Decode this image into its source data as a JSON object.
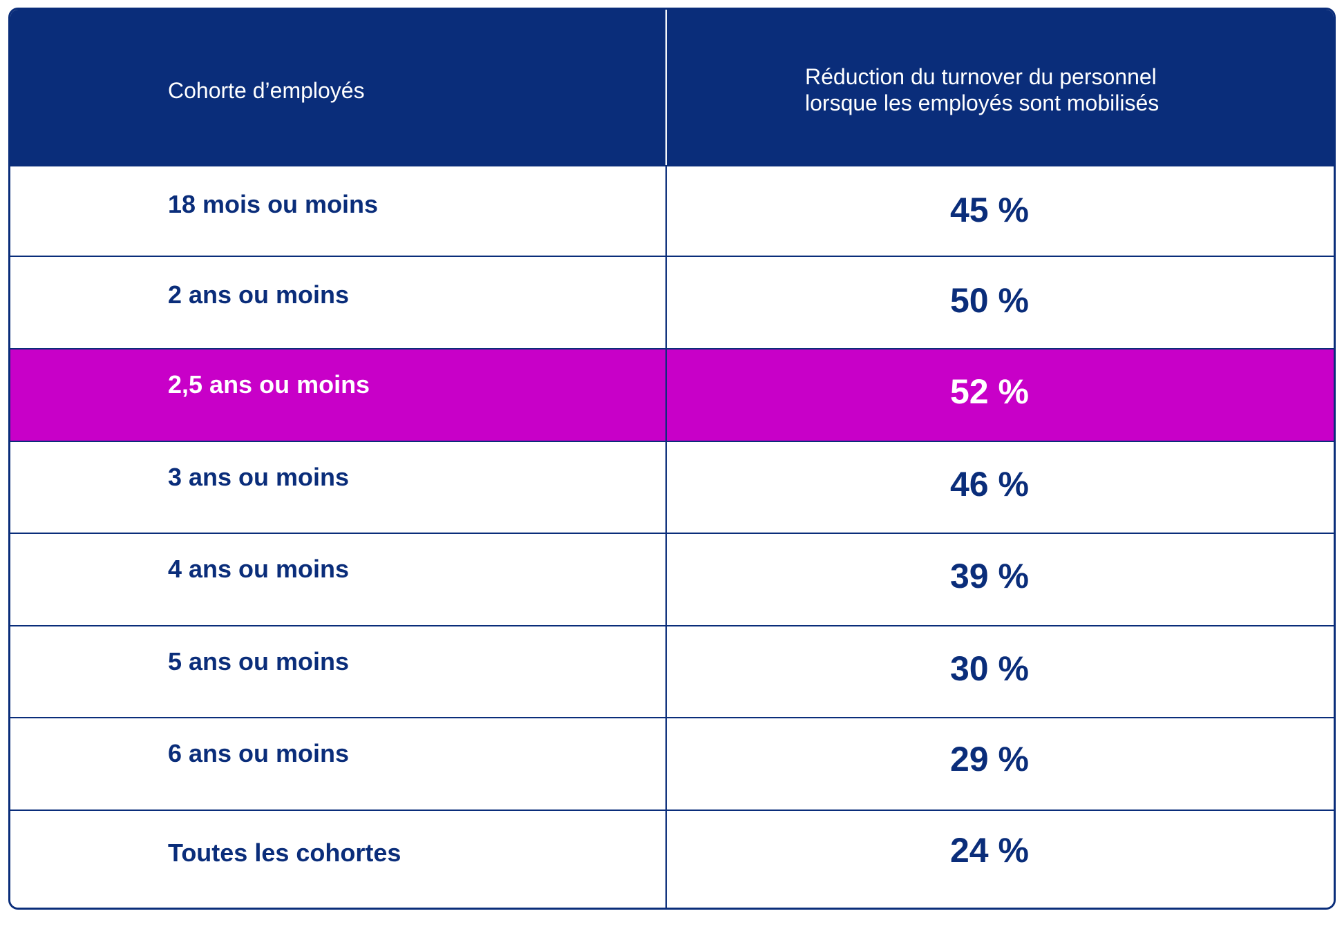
{
  "colors": {
    "header_bg": "#0a2d7a",
    "highlight_bg": "#c800c8",
    "text": "#0a2d7a",
    "header_text": "#ffffff"
  },
  "header": {
    "col1": "Cohorte d’employés",
    "col2_line1": "Réduction du turnover du personnel",
    "col2_line2": "lorsque les employés sont mobilisés"
  },
  "chart_data": {
    "type": "table",
    "columns": [
      "Cohorte d’employés",
      "Réduction du turnover du personnel lorsque les employés sont mobilisés"
    ],
    "rows": [
      {
        "cohort": "18 mois ou moins",
        "value": "45 %",
        "highlighted": false
      },
      {
        "cohort": "2 ans ou moins",
        "value": "50 %",
        "highlighted": false
      },
      {
        "cohort": "2,5 ans ou moins",
        "value": "52 %",
        "highlighted": true
      },
      {
        "cohort": "3 ans ou moins",
        "value": "46 %",
        "highlighted": false
      },
      {
        "cohort": "4 ans ou moins",
        "value": "39 %",
        "highlighted": false
      },
      {
        "cohort": "5 ans ou moins",
        "value": "30 %",
        "highlighted": false
      },
      {
        "cohort": "6 ans ou moins",
        "value": "29 %",
        "highlighted": false
      },
      {
        "cohort": "Toutes les cohortes",
        "value": "24 %",
        "highlighted": false
      }
    ]
  }
}
